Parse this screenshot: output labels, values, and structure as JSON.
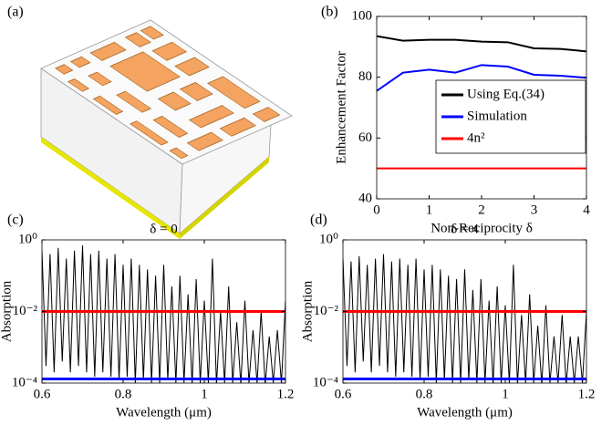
{
  "illustration": {
    "label": "(a)"
  },
  "chart_data": [
    {
      "type": "line",
      "label": "(b)",
      "xlabel": "Non-Reciprocity δ",
      "ylabel": "Enhancement Factor",
      "x": [
        0,
        0.5,
        1,
        1.5,
        2,
        2.5,
        3,
        3.5,
        4
      ],
      "xlim": [
        0,
        4
      ],
      "xticks": [
        0,
        1,
        2,
        3,
        4
      ],
      "ylim": [
        40,
        100
      ],
      "yticks": [
        40,
        60,
        80,
        100
      ],
      "legend": "center right",
      "series": [
        {
          "name": "Using Eq.(34)",
          "color": "#000000",
          "values": [
            93.5,
            92,
            92.3,
            92.3,
            91.7,
            91.5,
            89.5,
            89.3,
            88.5
          ]
        },
        {
          "name": "Simulation",
          "color": "#0000ff",
          "values": [
            75.5,
            81.5,
            82.5,
            81.5,
            84,
            83.5,
            80.8,
            80.5,
            79.8
          ]
        },
        {
          "name": "4n²",
          "color": "#ff0000",
          "values": [
            50,
            50,
            50,
            50,
            50,
            50,
            50,
            50,
            50
          ]
        }
      ]
    },
    {
      "type": "line",
      "label": "(c)",
      "title": "δ = 0",
      "xlabel": "Wavelength (μm)",
      "ylabel": "Absorption",
      "yscale": "log",
      "xlim": [
        0.6,
        1.2
      ],
      "xticks": [
        0.6,
        0.8,
        1,
        1.2
      ],
      "ylim": [
        0.0001,
        1
      ],
      "yticks": [
        {
          "value": 0.0001,
          "label": "10⁻⁴"
        },
        {
          "value": 0.01,
          "label": "10⁻²"
        },
        {
          "value": 1,
          "label": "10⁰"
        }
      ],
      "x": [
        0.6,
        0.61,
        0.62,
        0.63,
        0.64,
        0.65,
        0.66,
        0.67,
        0.68,
        0.69,
        0.7,
        0.71,
        0.72,
        0.73,
        0.74,
        0.75,
        0.76,
        0.77,
        0.78,
        0.79,
        0.8,
        0.81,
        0.82,
        0.83,
        0.84,
        0.85,
        0.86,
        0.87,
        0.88,
        0.89,
        0.9,
        0.91,
        0.92,
        0.93,
        0.94,
        0.95,
        0.96,
        0.97,
        0.98,
        0.99,
        1,
        1.01,
        1.02,
        1.03,
        1.04,
        1.05,
        1.06,
        1.07,
        1.08,
        1.09,
        1.1,
        1.11,
        1.12,
        1.13,
        1.14,
        1.15,
        1.16,
        1.17,
        1.18,
        1.19,
        1.2
      ],
      "series": [
        {
          "color": "#000000",
          "width": 1,
          "values": [
            0.5,
            0.0003,
            0.4,
            0.0002,
            0.6,
            0.0004,
            0.3,
            0.0002,
            0.5,
            0.0003,
            0.7,
            0.0002,
            0.4,
            0.00015,
            0.5,
            0.0002,
            0.3,
            0.00015,
            0.4,
            0.00012,
            0.2,
            0.00015,
            0.3,
            0.0001,
            0.2,
            0.00012,
            0.15,
            0.0001,
            0.1,
            0.0001,
            0.2,
            0.00012,
            0.05,
            0.0001,
            0.1,
            0.0001,
            0.03,
            9e-05,
            0.08,
            0.0001,
            0.02,
            0.0001,
            0.3,
            9e-05,
            0.01,
            0.0001,
            0.05,
            0.0001,
            0.005,
            9e-05,
            0.02,
            0.0001,
            0.003,
            0.0001,
            0.01,
            9e-05,
            0.002,
            0.0001,
            0.003,
            0.0001,
            0.02
          ]
        },
        {
          "color": "#ff0000",
          "width": 3,
          "x": [
            0.6,
            1.2
          ],
          "values": [
            0.01,
            0.01
          ]
        },
        {
          "color": "#0000ff",
          "width": 3,
          "x": [
            0.6,
            1.2
          ],
          "values": [
            0.00013,
            0.00013
          ]
        }
      ]
    },
    {
      "type": "line",
      "label": "(d)",
      "title": "δ = 4",
      "xlabel": "Wavelength (μm)",
      "ylabel": "Absorption",
      "yscale": "log",
      "xlim": [
        0.6,
        1.2
      ],
      "xticks": [
        0.6,
        0.8,
        1,
        1.2
      ],
      "ylim": [
        0.0001,
        1
      ],
      "yticks": [
        {
          "value": 0.0001,
          "label": "10⁻⁴"
        },
        {
          "value": 0.01,
          "label": "10⁻²"
        },
        {
          "value": 1,
          "label": "10⁰"
        }
      ],
      "x": [
        0.6,
        0.61,
        0.62,
        0.63,
        0.64,
        0.65,
        0.66,
        0.67,
        0.68,
        0.69,
        0.7,
        0.71,
        0.72,
        0.73,
        0.74,
        0.75,
        0.76,
        0.77,
        0.78,
        0.79,
        0.8,
        0.81,
        0.82,
        0.83,
        0.84,
        0.85,
        0.86,
        0.87,
        0.88,
        0.89,
        0.9,
        0.91,
        0.92,
        0.93,
        0.94,
        0.95,
        0.96,
        0.97,
        0.98,
        0.99,
        1,
        1.01,
        1.02,
        1.03,
        1.04,
        1.05,
        1.06,
        1.07,
        1.08,
        1.09,
        1.1,
        1.11,
        1.12,
        1.13,
        1.14,
        1.15,
        1.16,
        1.17,
        1.18,
        1.19,
        1.2
      ],
      "series": [
        {
          "color": "#000000",
          "width": 1,
          "values": [
            0.3,
            0.0003,
            0.25,
            0.0002,
            0.35,
            0.0004,
            0.2,
            0.0002,
            0.3,
            0.0003,
            0.4,
            0.0002,
            0.25,
            0.00015,
            0.3,
            0.0002,
            0.2,
            0.00015,
            0.3,
            0.00012,
            0.15,
            0.00015,
            0.2,
            0.0001,
            0.15,
            0.00012,
            0.1,
            0.0001,
            0.08,
            0.0001,
            0.15,
            0.00012,
            0.04,
            0.0001,
            0.08,
            0.0001,
            0.02,
            9e-05,
            0.05,
            0.0001,
            0.015,
            0.0001,
            0.2,
            9e-05,
            0.008,
            0.0001,
            0.03,
            0.0001,
            0.004,
            9e-05,
            0.015,
            0.0001,
            0.002,
            0.0001,
            0.008,
            9e-05,
            0.002,
            0.0001,
            0.002,
            0.0001,
            0.01
          ]
        },
        {
          "color": "#ff0000",
          "width": 3,
          "x": [
            0.6,
            1.2
          ],
          "values": [
            0.01,
            0.01
          ]
        },
        {
          "color": "#0000ff",
          "width": 3,
          "x": [
            0.6,
            1.2
          ],
          "values": [
            0.00013,
            0.00013
          ]
        }
      ]
    }
  ]
}
